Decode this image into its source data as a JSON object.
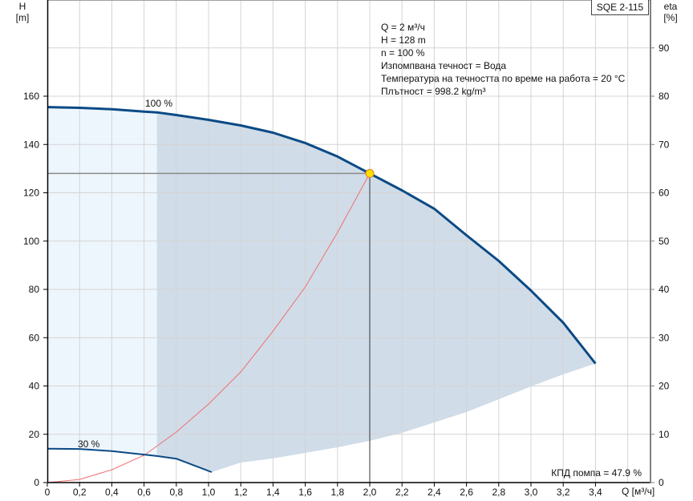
{
  "model_label": "SQE 2-115",
  "info_lines": [
    "Q = 2 м³/ч",
    "H = 128 m",
    "n = 100 %",
    "Изпомпвана течност = Вода",
    "Температура на течността по време на работа = 20 °C",
    "Плътност = 998.2 kg/m³"
  ],
  "efficiency_note": "КПД помпа = 47.9 %",
  "colors": {
    "curve": "#0b4a85",
    "system_curve": "#f07070",
    "region_dark": "#d0dce8",
    "region_light": "#eef6fd",
    "grid": "#d4d4d4",
    "operating_point": "#ffe000",
    "operating_point_border": "#e08020"
  },
  "chart_data": {
    "type": "line",
    "title": "SQE 2-115",
    "xlabel": "Q [м³/ч]",
    "ylabel": "H [m]",
    "y2label": "eta [%]",
    "xlim": [
      0,
      3.6
    ],
    "ylim": [
      0,
      180
    ],
    "y2lim": [
      0,
      90
    ],
    "x_ticks": [
      "0",
      "0,2",
      "0,4",
      "0,6",
      "0,8",
      "1,0",
      "1,2",
      "1,4",
      "1,6",
      "1,8",
      "2,0",
      "2,2",
      "2,4",
      "2,6",
      "2,8",
      "3,0",
      "3,2",
      "3,4"
    ],
    "y_ticks": [
      0,
      20,
      40,
      60,
      80,
      100,
      120,
      140,
      160
    ],
    "y2_ticks": [
      0,
      10,
      20,
      30,
      40,
      50,
      60,
      70,
      80,
      90
    ],
    "grid": true,
    "series": [
      {
        "name": "100 %",
        "x": [
          0,
          0.2,
          0.4,
          0.6,
          0.68,
          0.8,
          1.0,
          1.2,
          1.4,
          1.6,
          1.8,
          2.0,
          2.2,
          2.4,
          2.6,
          2.8,
          3.0,
          3.2,
          3.4
        ],
        "y": [
          155.5,
          155.2,
          154.6,
          153.6,
          153.3,
          152.2,
          150.2,
          147.9,
          144.9,
          140.6,
          135.0,
          128.0,
          121.0,
          113.4,
          102.4,
          91.8,
          79.5,
          66.2,
          49.3
        ]
      },
      {
        "name": "30 %",
        "x": [
          0,
          0.2,
          0.4,
          0.6,
          0.68,
          0.8,
          1.02
        ],
        "y": [
          14.0,
          13.9,
          13.0,
          11.6,
          11.0,
          9.9,
          4.3
        ]
      },
      {
        "name": "System curve",
        "x": [
          0,
          0.2,
          0.4,
          0.6,
          0.8,
          1.0,
          1.2,
          1.4,
          1.6,
          1.8,
          2.0
        ],
        "y": [
          0,
          1.3,
          5.3,
          11.3,
          20.9,
          32.5,
          45.8,
          62.7,
          81.0,
          103.6,
          128.0
        ]
      },
      {
        "name": "Operating range lower bound",
        "x": [
          1.02,
          1.2,
          1.4,
          1.6,
          1.8,
          2.0,
          2.2,
          2.4,
          2.6,
          2.8,
          3.0,
          3.2,
          3.4
        ],
        "y": [
          4.3,
          8.3,
          10.0,
          12.3,
          14.6,
          17.3,
          20.6,
          24.9,
          29.2,
          34.5,
          39.8,
          44.8,
          49.3
        ]
      }
    ],
    "operating_point": {
      "x": 2.0,
      "y": 128
    },
    "annotations": [
      "100 %",
      "30 %",
      "КПД помпа = 47.9 %"
    ]
  }
}
